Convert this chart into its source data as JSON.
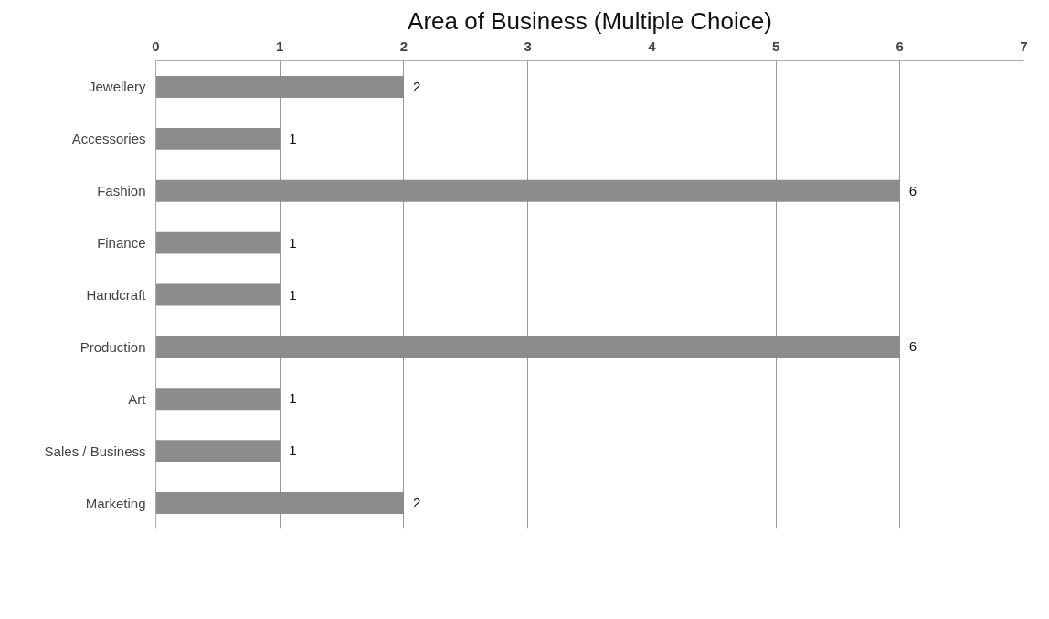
{
  "chart_data": {
    "type": "bar",
    "orientation": "horizontal",
    "title": "Area of Business (Multiple Choice)",
    "categories": [
      "Jewellery",
      "Accessories",
      "Fashion",
      "Finance",
      "Handcraft",
      "Production",
      "Art",
      "Sales / Business",
      "Marketing"
    ],
    "values": [
      2,
      1,
      6,
      1,
      1,
      6,
      1,
      1,
      2
    ],
    "color": "#8c8c8c",
    "xlim": [
      0,
      7
    ],
    "xticks": [
      0,
      1,
      2,
      3,
      4,
      5,
      6,
      7
    ],
    "grid": "x",
    "data_labels": true
  }
}
